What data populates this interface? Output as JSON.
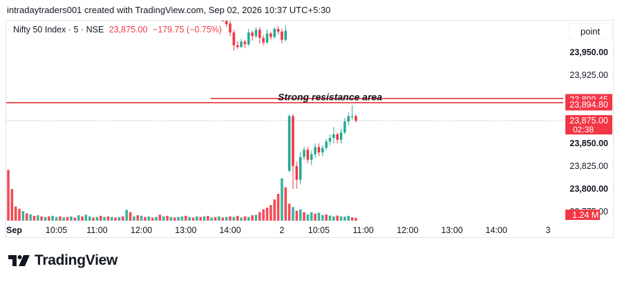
{
  "caption": "intradaytraders001 created with TradingView.com, Sep 02, 2026 10:37 UTC+5:30",
  "legend": {
    "symbol": "Nifty 50 Index · 5 · NSE",
    "price": "23,875.00",
    "change": "−179.75 (−0.75%)"
  },
  "scale_button": "point",
  "brand": "TradingView",
  "colors": {
    "up": "#22ab94",
    "down": "#f23645",
    "line": "#e0303a",
    "text": "#131722"
  },
  "chart_data": {
    "type": "candlestick",
    "ylim": [
      23765,
      23985
    ],
    "y_ticks": [
      "23,950.00",
      "23,925.00",
      "23,850.00",
      "23,825.00",
      "23,800.00",
      "23,775.00"
    ],
    "y_tick_values": [
      23950,
      23925,
      23850,
      23825,
      23800,
      23775
    ],
    "y_tick_bold": [
      true,
      false,
      true,
      false,
      true,
      false
    ],
    "x_ticks": [
      "Sep",
      "10:05",
      "11:00",
      "12:00",
      "13:00",
      "14:00",
      "2",
      "10:05",
      "11:00",
      "12:00",
      "13:00",
      "14:00",
      "3"
    ],
    "x_tick_bars": [
      0,
      13,
      24,
      36,
      48,
      60,
      74,
      84,
      96,
      108,
      120,
      132,
      146
    ],
    "price_labels": [
      {
        "text": "23,899.45",
        "value": 23899.45
      },
      {
        "text": "23,894.80",
        "value": 23894.8
      }
    ],
    "last_price": {
      "text": "23,875.00",
      "countdown": "02:38",
      "value": 23875
    },
    "volume_label": "1.24 M",
    "annotation": {
      "text": "Strong resistance area",
      "value": 23897
    },
    "candles_session1": [
      {
        "open": 23993,
        "close": 23987,
        "high": 23996,
        "low": 23985
      },
      {
        "open": 23988,
        "close": 23981,
        "high": 23990,
        "low": 23978
      },
      {
        "open": 23982,
        "close": 23972,
        "high": 23985,
        "low": 23968
      },
      {
        "open": 23972,
        "close": 23958,
        "high": 23975,
        "low": 23952
      },
      {
        "open": 23958,
        "close": 23956,
        "high": 23962,
        "low": 23954
      },
      {
        "open": 23956,
        "close": 23962,
        "high": 23965,
        "low": 23955
      },
      {
        "open": 23962,
        "close": 23959,
        "high": 23964,
        "low": 23955
      },
      {
        "open": 23959,
        "close": 23972,
        "high": 23976,
        "low": 23957
      },
      {
        "open": 23972,
        "close": 23968,
        "high": 23974,
        "low": 23963
      },
      {
        "open": 23968,
        "close": 23975,
        "high": 23978,
        "low": 23966
      },
      {
        "open": 23975,
        "close": 23966,
        "high": 23978,
        "low": 23960
      },
      {
        "open": 23966,
        "close": 23961,
        "high": 23969,
        "low": 23958
      },
      {
        "open": 23961,
        "close": 23971,
        "high": 23975,
        "low": 23960
      },
      {
        "open": 23971,
        "close": 23967,
        "high": 23973,
        "low": 23964
      },
      {
        "open": 23967,
        "close": 23976,
        "high": 23978,
        "low": 23965
      },
      {
        "open": 23976,
        "close": 23973,
        "high": 23979,
        "low": 23970
      },
      {
        "open": 23973,
        "close": 23964,
        "high": 23976,
        "low": 23960
      },
      {
        "open": 23964,
        "close": 23974,
        "high": 23980,
        "low": 23962
      }
    ],
    "candles_session2": [
      {
        "open": 23820,
        "close": 23880,
        "high": 23882,
        "low": 23818
      },
      {
        "open": 23880,
        "close": 23825,
        "high": 23882,
        "low": 23800
      },
      {
        "open": 23825,
        "close": 23810,
        "high": 23830,
        "low": 23800
      },
      {
        "open": 23810,
        "close": 23835,
        "high": 23840,
        "low": 23805
      },
      {
        "open": 23835,
        "close": 23843,
        "high": 23846,
        "low": 23832
      },
      {
        "open": 23843,
        "close": 23832,
        "high": 23846,
        "low": 23828
      },
      {
        "open": 23832,
        "close": 23838,
        "high": 23842,
        "low": 23826
      },
      {
        "open": 23838,
        "close": 23846,
        "high": 23850,
        "low": 23834
      },
      {
        "open": 23846,
        "close": 23840,
        "high": 23850,
        "low": 23836
      },
      {
        "open": 23840,
        "close": 23845,
        "high": 23848,
        "low": 23836
      },
      {
        "open": 23845,
        "close": 23852,
        "high": 23855,
        "low": 23842
      },
      {
        "open": 23852,
        "close": 23856,
        "high": 23860,
        "low": 23848
      },
      {
        "open": 23856,
        "close": 23860,
        "high": 23868,
        "low": 23850
      },
      {
        "open": 23860,
        "close": 23854,
        "high": 23862,
        "low": 23850
      },
      {
        "open": 23854,
        "close": 23862,
        "high": 23866,
        "low": 23850
      },
      {
        "open": 23862,
        "close": 23874,
        "high": 23878,
        "low": 23860
      },
      {
        "open": 23874,
        "close": 23880,
        "high": 23884,
        "low": 23870
      },
      {
        "open": 23879,
        "close": 23880,
        "high": 23892,
        "low": 23876
      },
      {
        "open": 23880,
        "close": 23875,
        "high": 23882,
        "low": 23873
      }
    ],
    "volume_bars_m": [
      1.8,
      1.12,
      0.5,
      0.42,
      0.34,
      0.26,
      0.22,
      0.17,
      0.19,
      0.15,
      0.13,
      0.15,
      0.17,
      0.13,
      0.15,
      0.11,
      0.13,
      0.15,
      0.11,
      0.19,
      0.15,
      0.21,
      0.15,
      0.11,
      0.13,
      0.17,
      0.13,
      0.15,
      0.13,
      0.11,
      0.13,
      0.15,
      0.38,
      0.3,
      0.15,
      0.19,
      0.17,
      0.13,
      0.15,
      0.11,
      0.13,
      0.21,
      0.15,
      0.17,
      0.13,
      0.11,
      0.13,
      0.15,
      0.17,
      0.13,
      0.11,
      0.15,
      0.13,
      0.15,
      0.17,
      0.11,
      0.13,
      0.15,
      0.11,
      0.13,
      0.15,
      0.13,
      0.17,
      0.11,
      0.15,
      0.13,
      0.19,
      0.21,
      0.3,
      0.4,
      0.46,
      0.55,
      0.75,
      0.95,
      1.5,
      1.18,
      0.6,
      0.48,
      0.35,
      0.4,
      0.3,
      0.22,
      0.3,
      0.25,
      0.28,
      0.2,
      0.22,
      0.18,
      0.15,
      0.18,
      0.15,
      0.14,
      0.17,
      0.12,
      0.1
    ],
    "volume_up": [
      false,
      false,
      false,
      false,
      true,
      false,
      true,
      false,
      true,
      false,
      true,
      false,
      true,
      true,
      false,
      true,
      false,
      true,
      false,
      true,
      false,
      true,
      true,
      false,
      true,
      false,
      true,
      false,
      true,
      false,
      true,
      false,
      true,
      false,
      true,
      false,
      true,
      false,
      true,
      false,
      true,
      false,
      true,
      false,
      true,
      false,
      true,
      true,
      false,
      true,
      false,
      true,
      false,
      true,
      false,
      true,
      false,
      true,
      false,
      true,
      false,
      true,
      false,
      true,
      false,
      true,
      false,
      true,
      false,
      false,
      false,
      false,
      false,
      false,
      true,
      false,
      false,
      true,
      false,
      true,
      false,
      true,
      true,
      false,
      true,
      true,
      false,
      true,
      true,
      false,
      true,
      true,
      true,
      false,
      false
    ],
    "volume_max_m": 2.2
  }
}
